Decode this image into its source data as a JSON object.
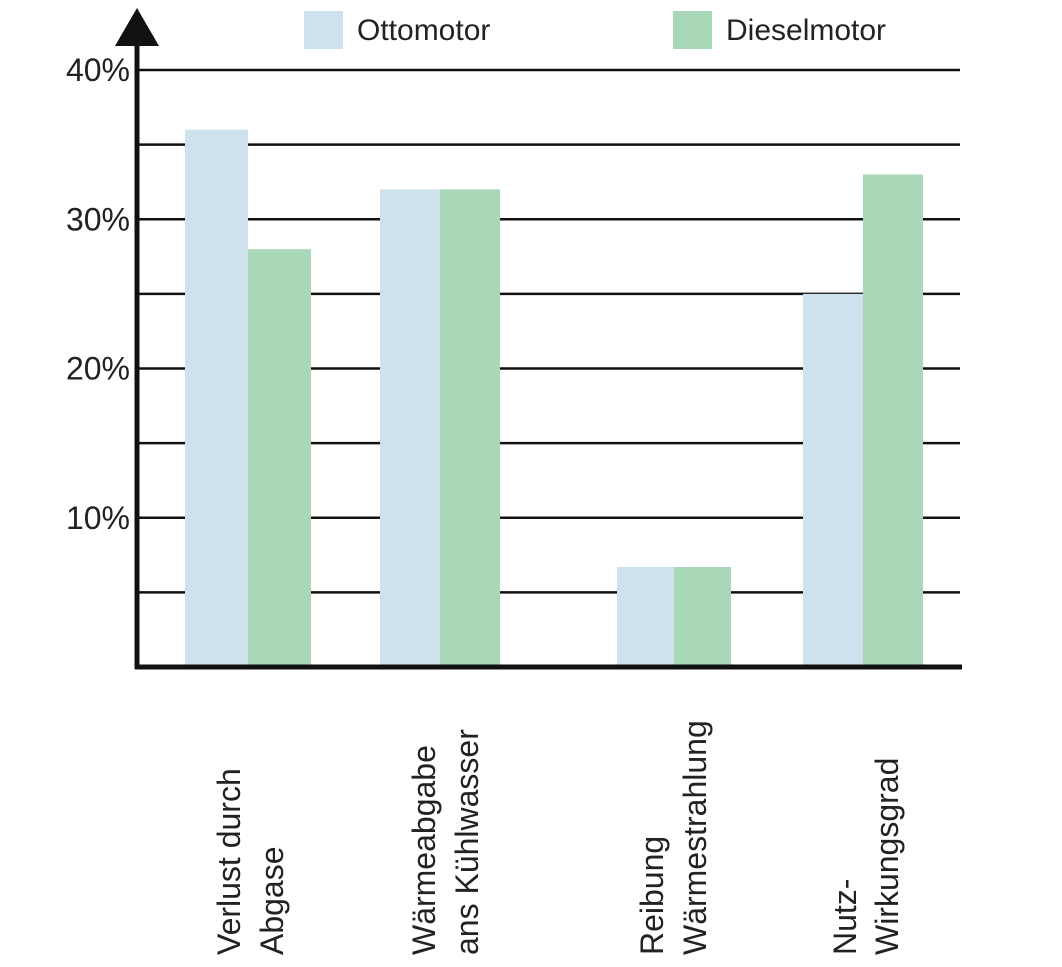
{
  "chart_data": {
    "type": "bar",
    "categories": [
      [
        "Verlust durch",
        "Abgase"
      ],
      [
        "Wärmeabgabe",
        "ans Kühlwasser"
      ],
      [
        "Reibung",
        "Wärmestrahlung"
      ],
      [
        "Nutz-",
        "Wirkungsgrad"
      ]
    ],
    "series": [
      {
        "name": "Ottomotor",
        "color": "#cde2ed",
        "values": [
          36,
          32,
          6.7,
          25
        ]
      },
      {
        "name": "Dieselmotor",
        "color": "#a9d8b8",
        "values": [
          28,
          32,
          6.7,
          33
        ]
      }
    ],
    "y_ticks": [
      "10%",
      "20%",
      "30%",
      "40%"
    ],
    "ylim": [
      0,
      40
    ],
    "grid": true,
    "legend_position": "top"
  }
}
